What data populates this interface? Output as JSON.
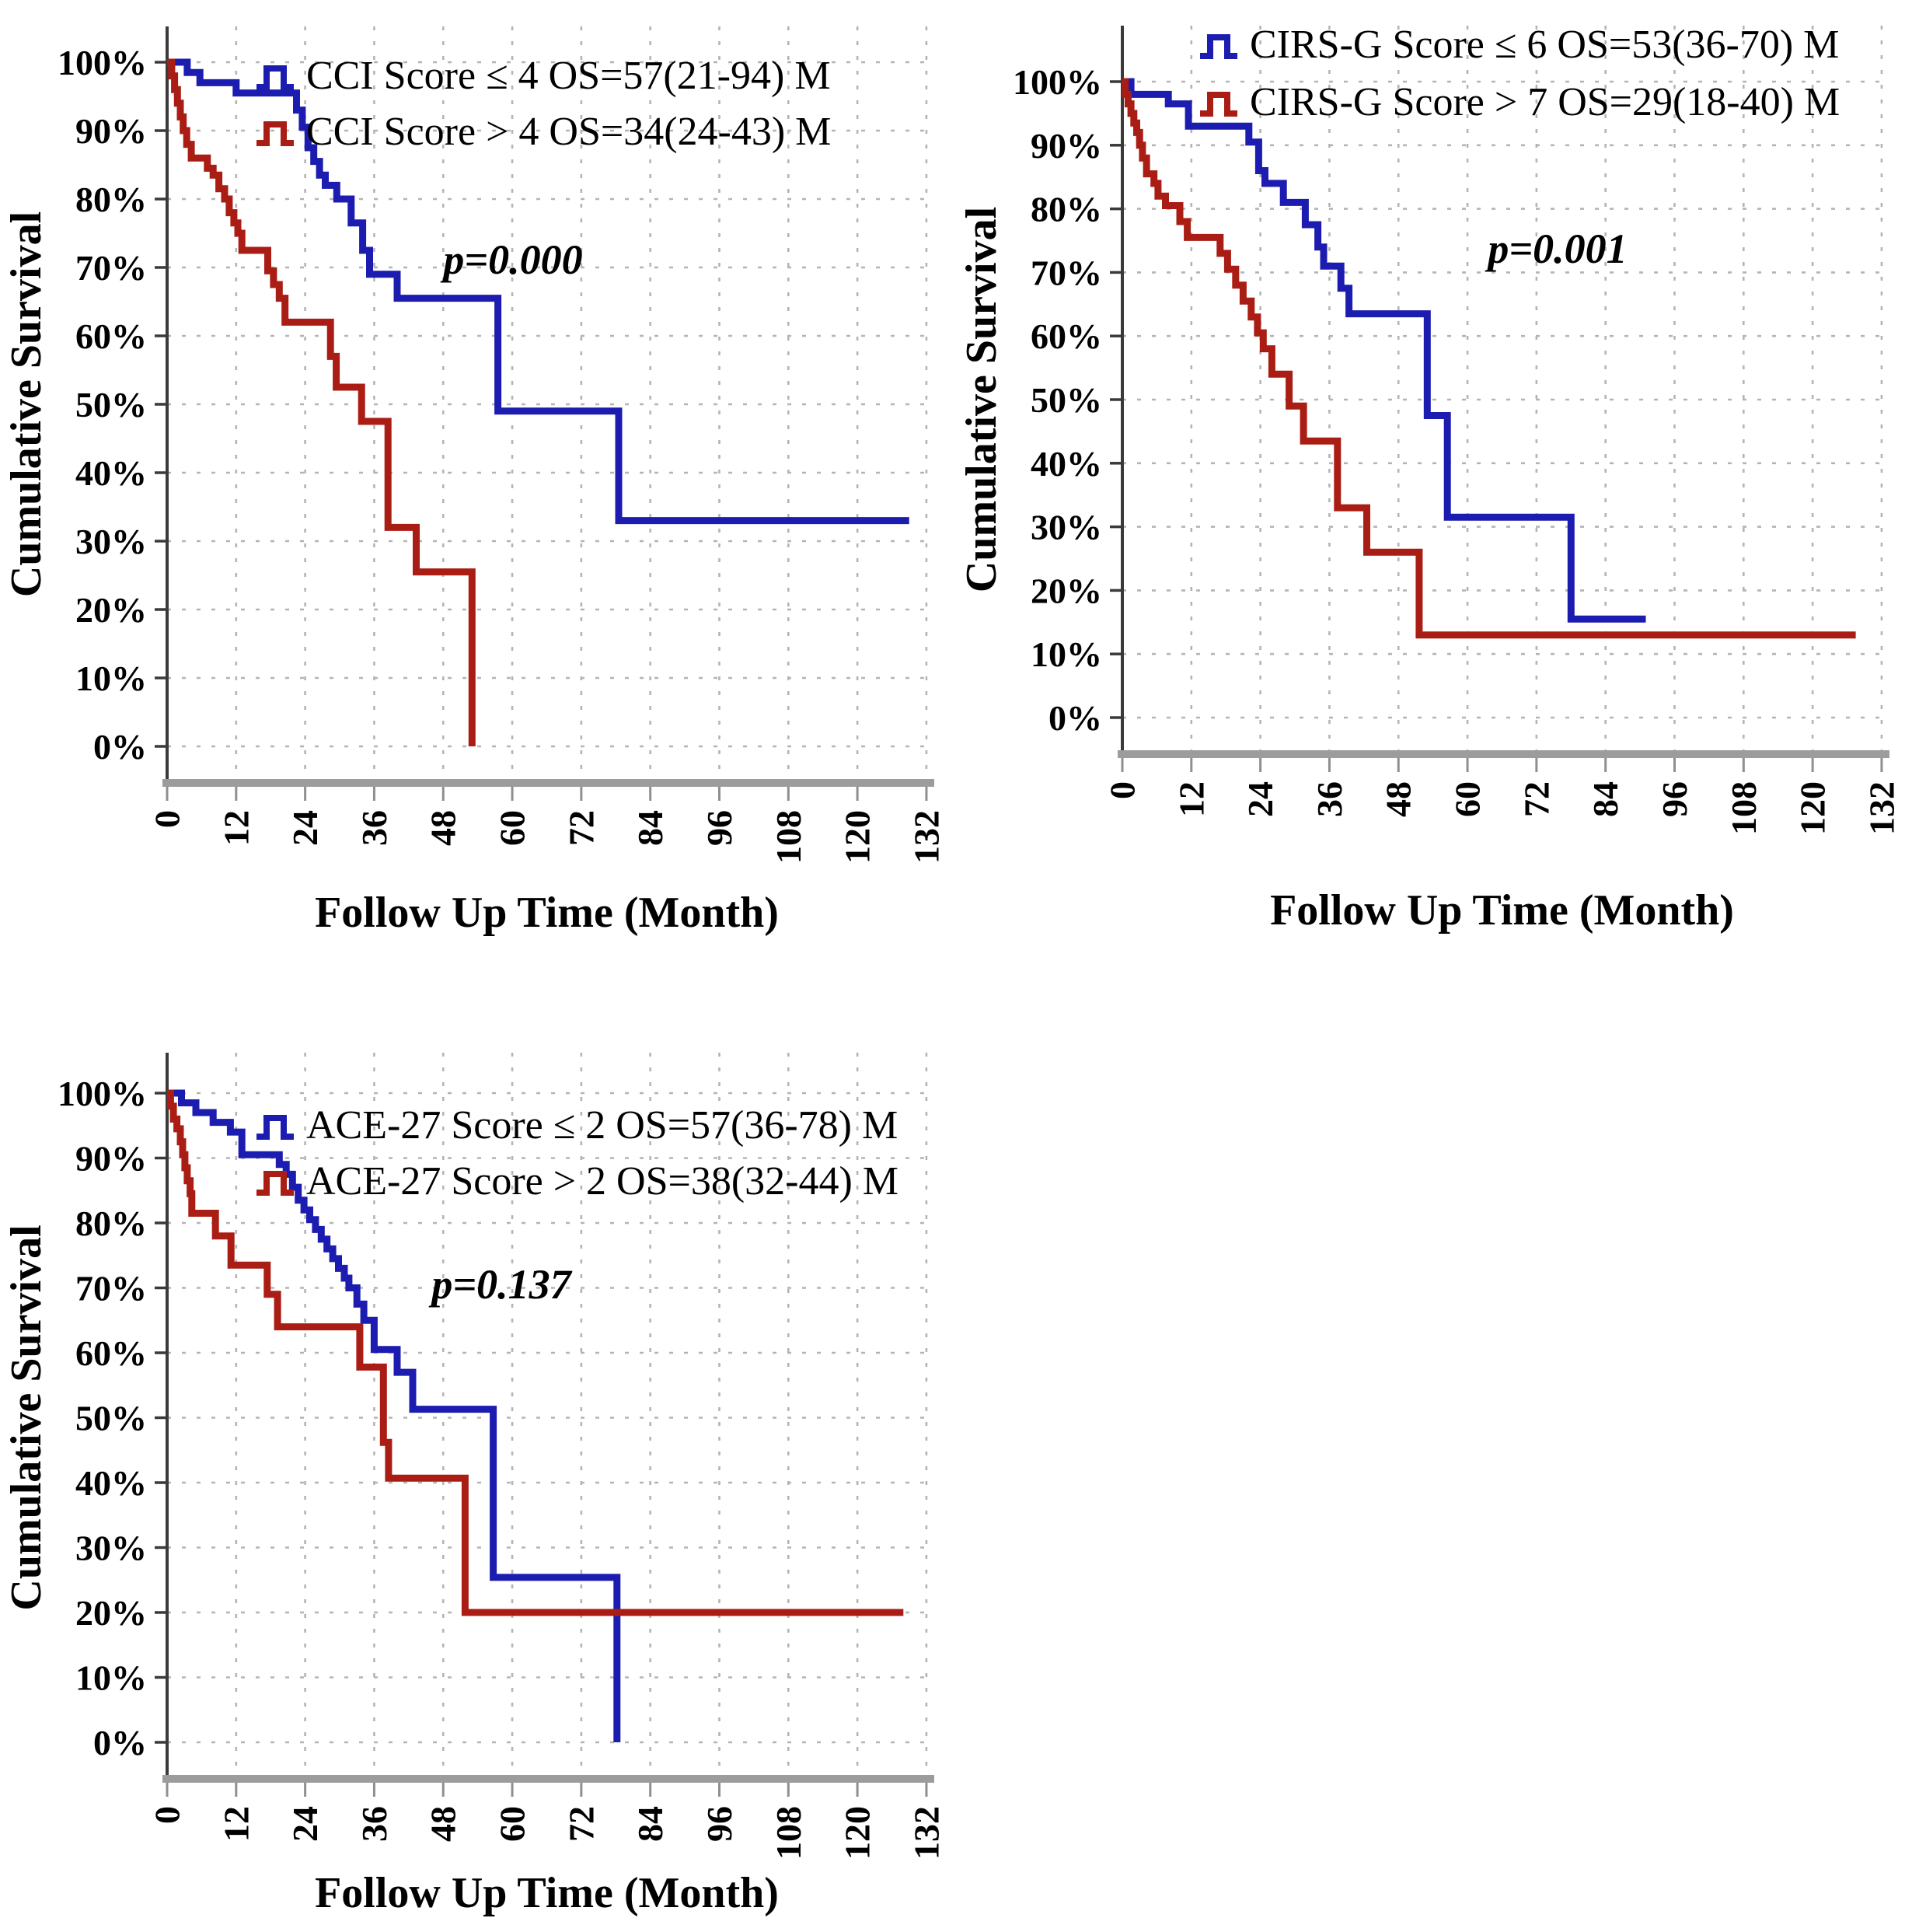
{
  "figure": {
    "background": "#ffffff",
    "colors": {
      "blue": "#1c1cb0",
      "red": "#aa1d14",
      "grid": "#b4b4b4",
      "axis": "#3a3a3a",
      "baseline": "#9c9c9c",
      "text": "#000000"
    }
  },
  "chart_data": [
    {
      "id": "cci",
      "type": "line",
      "step": true,
      "title": "",
      "xlabel": "Follow Up Time (Month)",
      "ylabel": "Cumulative Survival",
      "p_label": "p=0.000",
      "xlim": [
        0,
        132
      ],
      "ylim": [
        0,
        100
      ],
      "grid": true,
      "legend_position": "top-inside",
      "xticks": [
        0,
        12,
        24,
        36,
        48,
        60,
        72,
        84,
        96,
        108,
        120,
        132
      ],
      "ytick_labels": [
        "100%",
        "90%",
        "80%",
        "70%",
        "60%",
        "50%",
        "40%",
        "30%",
        "20%",
        "10%",
        "0%"
      ],
      "series": [
        {
          "name": "CCI Score ≤ 4  OS=57(21-94) M",
          "color": "blue",
          "median_os": "57(21-94)",
          "points": [
            [
              0,
              100
            ],
            [
              3.5,
              98.5
            ],
            [
              5.7,
              97
            ],
            [
              12,
              95.5
            ],
            [
              22.5,
              93
            ],
            [
              23.5,
              90.5
            ],
            [
              24.5,
              87.5
            ],
            [
              25.5,
              85.5
            ],
            [
              26.5,
              83.5
            ],
            [
              27.5,
              82
            ],
            [
              29.5,
              80
            ],
            [
              32,
              76.5
            ],
            [
              34,
              72.5
            ],
            [
              35.2,
              69
            ],
            [
              40,
              65.5
            ],
            [
              57.5,
              49
            ],
            [
              78.5,
              33
            ]
          ],
          "extend_to": 129
        },
        {
          "name": "CCI Score > 4  OS=34(24-43) M",
          "color": "red",
          "median_os": "34(24-43)",
          "points": [
            [
              0,
              100
            ],
            [
              0.8,
              98
            ],
            [
              1.3,
              96
            ],
            [
              1.8,
              94
            ],
            [
              2.3,
              92
            ],
            [
              2.8,
              90
            ],
            [
              3.4,
              88
            ],
            [
              4.2,
              86
            ],
            [
              7,
              84.5
            ],
            [
              8,
              83.5
            ],
            [
              9,
              81.5
            ],
            [
              10,
              80
            ],
            [
              10.8,
              78
            ],
            [
              11.6,
              76.5
            ],
            [
              12.3,
              75
            ],
            [
              13,
              72.5
            ],
            [
              17.5,
              69.5
            ],
            [
              18.5,
              67.5
            ],
            [
              19.5,
              65.5
            ],
            [
              20.5,
              62
            ],
            [
              28.4,
              57
            ],
            [
              29.4,
              52.5
            ],
            [
              33.8,
              47.5
            ],
            [
              38.4,
              32
            ],
            [
              43.3,
              25.5
            ],
            [
              53,
              0
            ]
          ],
          "extend_to": null
        }
      ]
    },
    {
      "id": "cirsg",
      "type": "line",
      "step": true,
      "title": "",
      "xlabel": "Follow Up Time (Month)",
      "ylabel": "Cumulative Survival",
      "p_label": "p=0.001",
      "xlim": [
        0,
        132
      ],
      "ylim": [
        0,
        100
      ],
      "grid": true,
      "legend_position": "top-inside",
      "xticks": [
        0,
        12,
        24,
        36,
        48,
        60,
        72,
        84,
        96,
        108,
        120,
        132
      ],
      "ytick_labels": [
        "100%",
        "90%",
        "80%",
        "70%",
        "60%",
        "50%",
        "40%",
        "30%",
        "20%",
        "10%",
        "0%"
      ],
      "series": [
        {
          "name": "CIRS-G Score ≤ 6 OS=53(36-70) M",
          "color": "blue",
          "median_os": "53(36-70)",
          "points": [
            [
              0,
              100
            ],
            [
              1.5,
              98
            ],
            [
              8,
              96.5
            ],
            [
              11.5,
              93
            ],
            [
              22,
              90.5
            ],
            [
              23.7,
              86
            ],
            [
              24.8,
              84
            ],
            [
              28,
              81
            ],
            [
              31.8,
              77.5
            ],
            [
              34,
              74
            ],
            [
              35,
              71
            ],
            [
              38,
              67.5
            ],
            [
              39.4,
              63.5
            ],
            [
              53,
              47.5
            ],
            [
              56.5,
              31.5
            ],
            [
              78,
              15.5
            ]
          ],
          "extend_to": 91
        },
        {
          "name": "CIRS-G Score > 7 OS=29(18-40) M",
          "color": "red",
          "median_os": "29(18-40)",
          "points": [
            [
              0,
              100
            ],
            [
              0.5,
              98
            ],
            [
              1,
              96.5
            ],
            [
              1.5,
              95
            ],
            [
              2,
              93.5
            ],
            [
              2.5,
              92
            ],
            [
              3,
              90
            ],
            [
              3.5,
              88
            ],
            [
              4.2,
              85.5
            ],
            [
              5.5,
              84
            ],
            [
              6.2,
              82
            ],
            [
              7.5,
              80.5
            ],
            [
              10,
              78
            ],
            [
              11.3,
              75.5
            ],
            [
              17,
              73
            ],
            [
              18.3,
              70.5
            ],
            [
              19.7,
              68
            ],
            [
              21,
              65.5
            ],
            [
              22.4,
              63
            ],
            [
              23.5,
              60.5
            ],
            [
              24.5,
              58
            ],
            [
              26,
              54
            ],
            [
              29,
              49
            ],
            [
              31.5,
              43.5
            ],
            [
              37.4,
              33
            ],
            [
              42.5,
              26
            ],
            [
              51.6,
              13
            ]
          ],
          "extend_to": 127.5
        }
      ]
    },
    {
      "id": "ace27",
      "type": "line",
      "step": true,
      "title": "",
      "xlabel": "Follow Up Time (Month)",
      "ylabel": "Cumulative Survival",
      "p_label": "p=0.137",
      "xlim": [
        0,
        132
      ],
      "ylim": [
        0,
        100
      ],
      "grid": true,
      "legend_position": "top-inside",
      "xticks": [
        0,
        12,
        24,
        36,
        48,
        60,
        72,
        84,
        96,
        108,
        120,
        132
      ],
      "ytick_labels": [
        "100%",
        "90%",
        "80%",
        "70%",
        "60%",
        "50%",
        "40%",
        "30%",
        "20%",
        "10%",
        "0%"
      ],
      "series": [
        {
          "name": "ACE-27 Score ≤ 2  OS=57(36-78) M",
          "color": "blue",
          "median_os": "57(36-78)",
          "points": [
            [
              0,
              100
            ],
            [
              2.5,
              98.5
            ],
            [
              5,
              97
            ],
            [
              8,
              95.5
            ],
            [
              11,
              94
            ],
            [
              13,
              90.5
            ],
            [
              19.5,
              89
            ],
            [
              20.7,
              87.5
            ],
            [
              21.8,
              85.5
            ],
            [
              22.8,
              83.5
            ],
            [
              23.8,
              82
            ],
            [
              24.8,
              80.5
            ],
            [
              25.8,
              79
            ],
            [
              26.8,
              77.5
            ],
            [
              27.8,
              76
            ],
            [
              28.8,
              74.5
            ],
            [
              29.8,
              73
            ],
            [
              30.8,
              71.5
            ],
            [
              31.6,
              70
            ],
            [
              33,
              67.5
            ],
            [
              34.2,
              65
            ],
            [
              36,
              60.5
            ],
            [
              40,
              57
            ],
            [
              42.7,
              51.3
            ],
            [
              56.7,
              25.4
            ],
            [
              78.2,
              0
            ]
          ],
          "extend_to": null
        },
        {
          "name": "ACE-27 Score > 2  OS=38(32-44) M",
          "color": "red",
          "median_os": "38(32-44)",
          "points": [
            [
              0,
              100
            ],
            [
              0.6,
              98
            ],
            [
              1.1,
              96
            ],
            [
              1.7,
              94.5
            ],
            [
              2.3,
              92.5
            ],
            [
              2.7,
              90.5
            ],
            [
              3.1,
              88.5
            ],
            [
              3.5,
              86.5
            ],
            [
              4,
              84.5
            ],
            [
              4.3,
              81.5
            ],
            [
              8.4,
              78
            ],
            [
              11.1,
              73.5
            ],
            [
              17.4,
              69
            ],
            [
              19.2,
              64
            ],
            [
              33.5,
              57.8
            ],
            [
              37.6,
              46.2
            ],
            [
              38.5,
              40.7
            ],
            [
              51.8,
              20
            ]
          ],
          "extend_to": 128
        }
      ]
    }
  ]
}
